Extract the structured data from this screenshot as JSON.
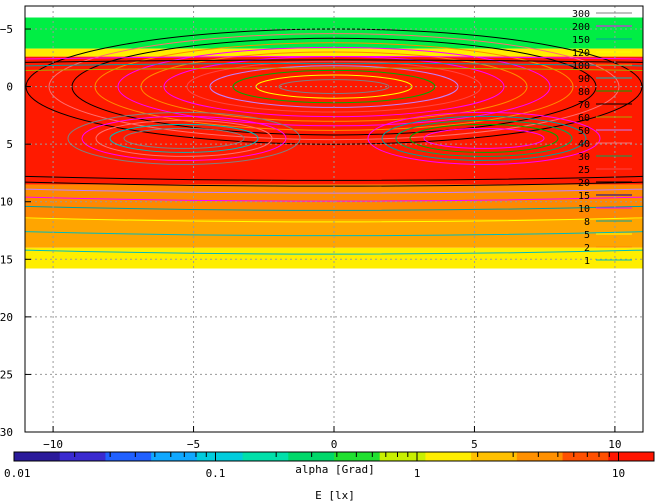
{
  "chart_data": {
    "type": "heatmap",
    "xlabel": "alpha [Grad]",
    "colorbar_label": "E [lx]",
    "x_ticks": [
      -10,
      -5,
      0,
      5,
      10
    ],
    "y_ticks": [
      -5,
      0,
      5,
      10,
      15,
      20,
      25,
      30
    ],
    "xlim": [
      -11,
      11
    ],
    "ylim": [
      -7,
      30
    ],
    "y_inverted": true,
    "colorbar": {
      "scale": "log",
      "range": [
        0.01,
        15
      ],
      "tick_labels": [
        "0.01",
        "0.1",
        "1",
        "10"
      ]
    },
    "legend_position": "top-right",
    "grid": true,
    "contour_levels": [
      300,
      200,
      150,
      120,
      100,
      90,
      80,
      70,
      60,
      50,
      40,
      30,
      25,
      20,
      15,
      10,
      8,
      5,
      2,
      1
    ],
    "contour_labels": [
      "300",
      "200",
      "150",
      "120",
      "100",
      "90",
      "80",
      "70",
      "60",
      "50",
      "40",
      "30",
      "25",
      "20",
      "15",
      "10",
      "8",
      "5",
      "2",
      "1"
    ],
    "contour_colors": [
      "#808080",
      "#ff00ff",
      "#00a0a0",
      "#ffff00",
      "#ff8c00",
      "#00bcbc",
      "#00aa00",
      "#000000",
      "#aaaa00",
      "#c080ff",
      "#ff7070",
      "#00aa55",
      "#ff4444",
      "#000000",
      "#0000a0",
      "#ff00ff",
      "#00a0a0",
      "#ffff00",
      "#ff8c00",
      "#00bcbc"
    ],
    "field_bands": [
      {
        "y_from": -6,
        "y_to": -3.3,
        "level": "green"
      },
      {
        "y_from": -3.3,
        "y_to": -2.6,
        "level": "yellow"
      },
      {
        "y_from": -2.6,
        "y_to": 8.5,
        "level": "red"
      },
      {
        "y_from": 8.5,
        "y_to": 11.5,
        "level": "dark-orange"
      },
      {
        "y_from": 11.5,
        "y_to": 14,
        "level": "orange"
      },
      {
        "y_from": 14,
        "y_to": 15.8,
        "level": "yellow"
      }
    ],
    "band_colors": {
      "green": "#00ee44",
      "yellow": "#ffee00",
      "red": "#ff1a00",
      "dark-orange": "#ff8800",
      "orange": "#ffa500"
    },
    "colorbar_stops": [
      "#2a1a9a",
      "#3a2ad0",
      "#2060ff",
      "#10a8ff",
      "#00ccdd",
      "#00e0aa",
      "#00d86a",
      "#20e030",
      "#c8f000",
      "#ffee00",
      "#ffc000",
      "#ff9000",
      "#ff5000",
      "#ff1500"
    ]
  }
}
